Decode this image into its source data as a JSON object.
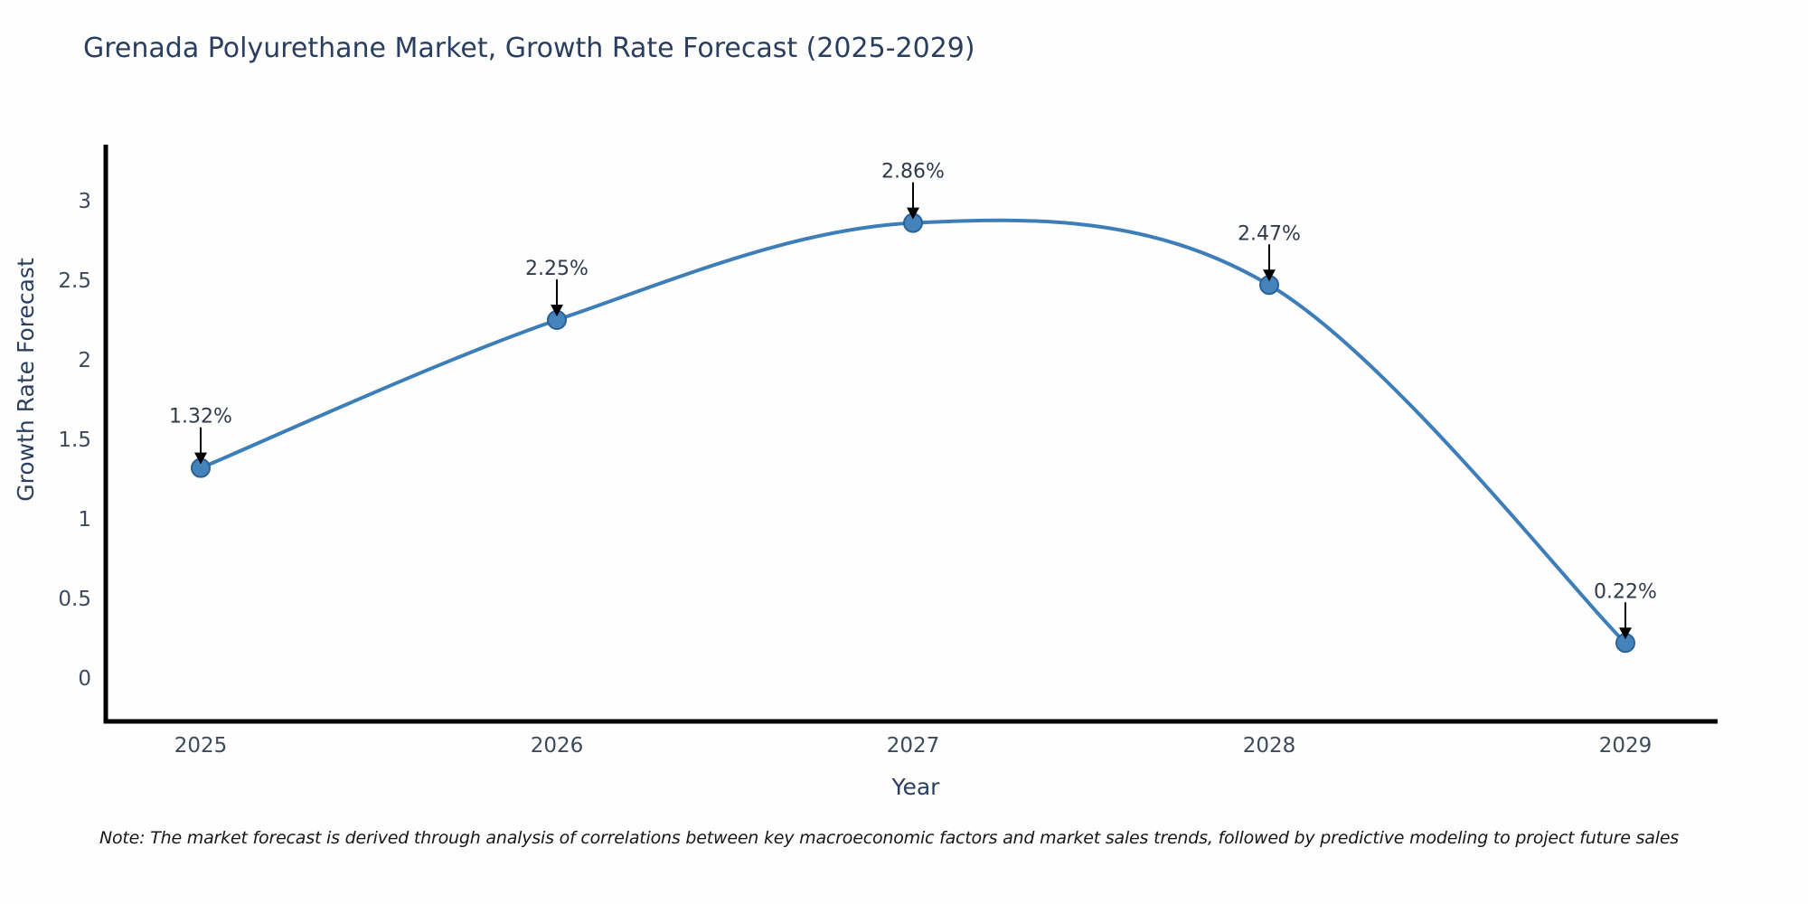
{
  "title": "Grenada Polyurethane Market, Growth Rate Forecast (2025-2029)",
  "note": "Note: The market forecast is derived through analysis of correlations between key macroeconomic factors and market sales trends, followed by predictive modeling to project future sales",
  "chart_data": {
    "type": "line",
    "line_shape": "spline",
    "title": "Grenada Polyurethane Market, Growth Rate Forecast (2025-2029)",
    "xlabel": "Year",
    "ylabel": "Growth Rate Forecast",
    "categories": [
      "2025",
      "2026",
      "2027",
      "2028",
      "2029"
    ],
    "values": [
      1.32,
      2.25,
      2.86,
      2.47,
      0.22
    ],
    "point_labels": [
      "1.32%",
      "2.25%",
      "2.86%",
      "2.47%",
      "0.22%"
    ],
    "yticks": [
      "0",
      "0.5",
      "1",
      "1.5",
      "2",
      "2.5",
      "3"
    ],
    "ytick_values": [
      0,
      0.5,
      1,
      1.5,
      2,
      2.5,
      3
    ],
    "ylim": [
      -0.27,
      3.35
    ],
    "grid": false,
    "legend_position": "none",
    "marker_style": "circle",
    "annotation_style": "down-arrow",
    "colors": {
      "line": "#3d7eb8",
      "marker_fill": "#4583bd",
      "marker_edge": "#2b6195",
      "axis": "#000000",
      "axis_title_text": "#2a3f5f",
      "tick_text": "#3d4a5c",
      "annotation_text": "#2f3b4c",
      "annotation_arrow": "#000000",
      "title_text": "#2a3f5f",
      "note_text": "#161616",
      "background": "#fefefe"
    }
  }
}
